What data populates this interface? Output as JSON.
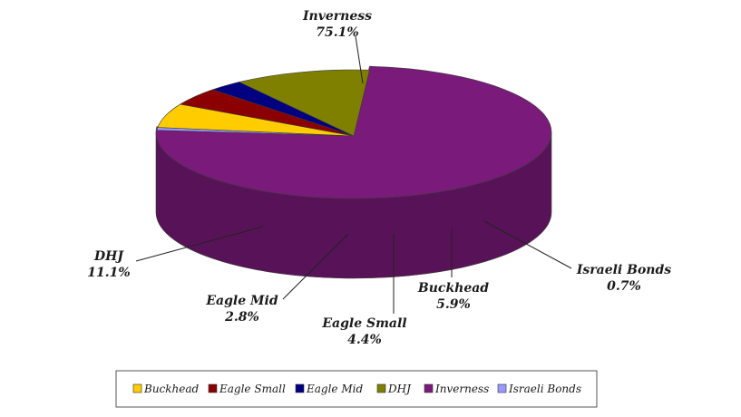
{
  "chart_data": {
    "type": "pie",
    "title": "",
    "categories": [
      "Inverness",
      "Israeli Bonds",
      "Buckhead",
      "Eagle Small",
      "Eagle Mid",
      "DHJ"
    ],
    "values": [
      75.1,
      0.7,
      5.9,
      4.4,
      2.8,
      11.1
    ],
    "value_labels": [
      "75.1%",
      "0.7%",
      "5.9%",
      "4.4%",
      "2.8%",
      "11.1%"
    ],
    "colors": {
      "Inverness": "#7a1a7a",
      "Israeli Bonds": "#9999ff",
      "Buckhead": "#ffcc00",
      "Eagle Small": "#8b0000",
      "Eagle Mid": "#000080",
      "DHJ": "#808000"
    },
    "style": "3d-exploded-pie",
    "legend": {
      "position": "bottom",
      "order": [
        "Buckhead",
        "Eagle Small",
        "Eagle Mid",
        "DHJ",
        "Inverness",
        "Israeli Bonds"
      ]
    }
  }
}
